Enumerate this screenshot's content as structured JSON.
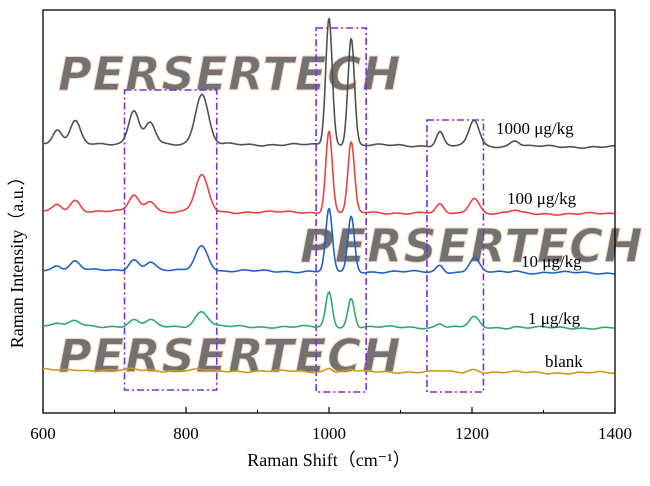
{
  "chart_data": {
    "type": "line",
    "title": "",
    "xlabel": "Raman Shift（cm⁻¹）",
    "ylabel": "Raman Intensity（a.u.）",
    "xlim": [
      600,
      1400
    ],
    "x_ticks": [
      "600",
      "800",
      "1000",
      "1200",
      "1400"
    ],
    "watermark": "PERSERTECH",
    "peaks_cm1": [
      620,
      645,
      727,
      750,
      822,
      1000,
      1031,
      1155,
      1203,
      1260
    ],
    "highlight_regions_cm1": [
      [
        714,
        843
      ],
      [
        982,
        1052
      ],
      [
        1137,
        1216
      ]
    ],
    "series": [
      {
        "name": "1000 μg/kg",
        "color": "#505050",
        "baseline": 0,
        "peak_heights": [
          12,
          22,
          33,
          21,
          50,
          128,
          108,
          14,
          26,
          6
        ]
      },
      {
        "name": "100 μg/kg",
        "color": "#e8423f",
        "baseline": 0,
        "peak_heights": [
          6,
          11,
          16,
          11,
          36,
          82,
          70,
          8,
          16,
          3
        ]
      },
      {
        "name": "10 μg/kg",
        "color": "#2060c8",
        "baseline": 0,
        "peak_heights": [
          5,
          9,
          11,
          9,
          25,
          62,
          55,
          7,
          14,
          2
        ]
      },
      {
        "name": "1 μg/kg",
        "color": "#2daa6a",
        "baseline": 0,
        "peak_heights": [
          3,
          5,
          6,
          6,
          15,
          35,
          29,
          4,
          10,
          1
        ]
      },
      {
        "name": "blank",
        "color": "#c99a1a",
        "baseline": 0,
        "peak_heights": [
          0,
          1,
          1,
          1,
          1,
          4,
          2,
          1,
          3,
          0
        ]
      }
    ]
  },
  "colors": {
    "highlight_box": "#7b2fd8",
    "watermark_fill": "#b9b1f0",
    "watermark_accent": "#f3b28a"
  }
}
